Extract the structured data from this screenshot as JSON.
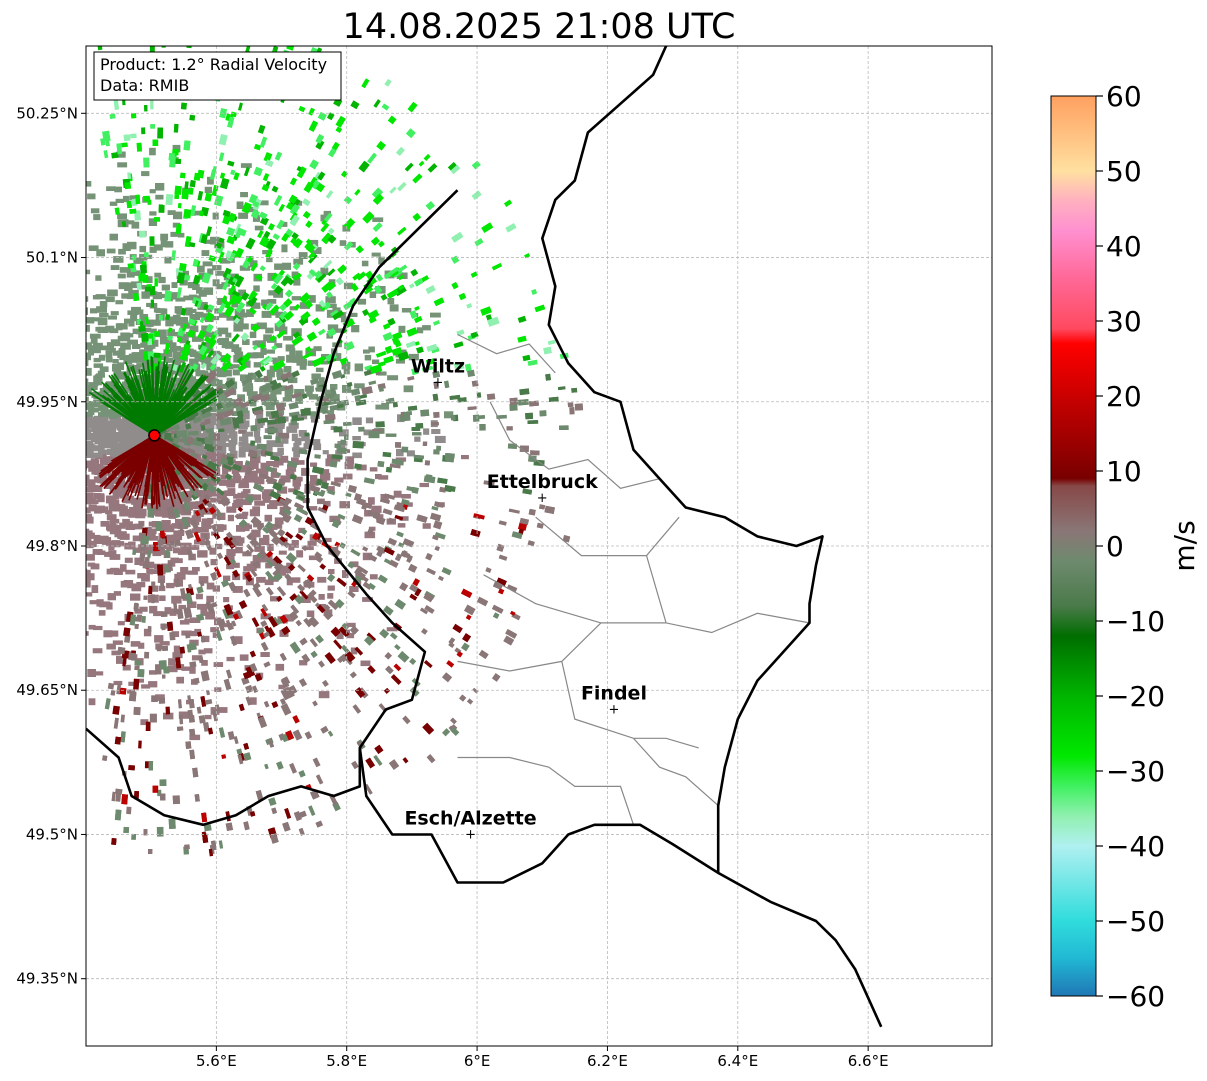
{
  "map": {
    "title": "14.08.2025 21:08 UTC",
    "info_box": {
      "product": "Product: 1.2° Radial Velocity",
      "data": "Data: RMIB"
    },
    "extent": {
      "lon_min": 5.4,
      "lon_max": 6.79,
      "lat_min": 49.28,
      "lat_max": 50.32
    },
    "lon_ticks": [
      {
        "value": 5.6,
        "label": "5.6°E"
      },
      {
        "value": 5.8,
        "label": "5.8°E"
      },
      {
        "value": 6.0,
        "label": "6°E"
      },
      {
        "value": 6.2,
        "label": "6.2°E"
      },
      {
        "value": 6.4,
        "label": "6.4°E"
      },
      {
        "value": 6.6,
        "label": "6.6°E"
      }
    ],
    "lat_ticks": [
      {
        "value": 50.25,
        "label": "50.25°N"
      },
      {
        "value": 50.1,
        "label": "50.1°N"
      },
      {
        "value": 49.95,
        "label": "49.95°N"
      },
      {
        "value": 49.8,
        "label": "49.8°N"
      },
      {
        "value": 49.65,
        "label": "49.65°N"
      },
      {
        "value": 49.5,
        "label": "49.5°N"
      },
      {
        "value": 49.35,
        "label": "49.35°N"
      }
    ],
    "cities": [
      {
        "name": "Wiltz",
        "lon": 5.94,
        "lat": 49.97
      },
      {
        "name": "Ettelbruck",
        "lon": 6.1,
        "lat": 49.85
      },
      {
        "name": "Findel",
        "lon": 6.21,
        "lat": 49.63
      },
      {
        "name": "Esch/Alzette",
        "lon": 5.99,
        "lat": 49.5
      }
    ],
    "radar_site": {
      "lon": 5.505,
      "lat": 49.915,
      "color": "#ff0000"
    },
    "country_border": [
      [
        6.29,
        50.32
      ],
      [
        6.27,
        50.29
      ],
      [
        6.22,
        50.26
      ],
      [
        6.17,
        50.23
      ],
      [
        6.15,
        50.18
      ],
      [
        6.12,
        50.16
      ],
      [
        6.1,
        50.12
      ],
      [
        6.12,
        50.07
      ],
      [
        6.11,
        50.03
      ],
      [
        6.14,
        49.99
      ],
      [
        6.18,
        49.96
      ],
      [
        6.22,
        49.95
      ],
      [
        6.24,
        49.9
      ],
      [
        6.28,
        49.87
      ],
      [
        6.32,
        49.84
      ],
      [
        6.38,
        49.83
      ],
      [
        6.43,
        49.81
      ],
      [
        6.49,
        49.8
      ],
      [
        6.53,
        49.81
      ],
      [
        6.52,
        49.78
      ],
      [
        6.51,
        49.74
      ],
      [
        6.51,
        49.72
      ],
      [
        6.43,
        49.66
      ],
      [
        6.4,
        49.62
      ],
      [
        6.38,
        49.57
      ],
      [
        6.37,
        49.53
      ],
      [
        6.37,
        49.46
      ],
      [
        6.3,
        49.49
      ],
      [
        6.25,
        49.51
      ],
      [
        6.18,
        49.51
      ],
      [
        6.14,
        49.5
      ],
      [
        6.1,
        49.47
      ],
      [
        6.04,
        49.45
      ],
      [
        5.97,
        49.45
      ],
      [
        5.93,
        49.5
      ],
      [
        5.87,
        49.5
      ],
      [
        5.83,
        49.54
      ],
      [
        5.82,
        49.59
      ],
      [
        5.86,
        49.63
      ],
      [
        5.9,
        49.64
      ],
      [
        5.92,
        49.69
      ],
      [
        5.87,
        49.72
      ],
      [
        5.83,
        49.75
      ],
      [
        5.77,
        49.8
      ],
      [
        5.74,
        49.84
      ],
      [
        5.74,
        49.89
      ],
      [
        5.76,
        49.95
      ],
      [
        5.78,
        50.0
      ],
      [
        5.81,
        50.05
      ],
      [
        5.85,
        50.09
      ],
      [
        5.91,
        50.13
      ],
      [
        5.97,
        50.17
      ]
    ],
    "east_border": [
      [
        6.29,
        50.32
      ],
      [
        6.31,
        50.33
      ]
    ],
    "east_border_2": [
      [
        6.37,
        49.46
      ],
      [
        6.45,
        49.43
      ],
      [
        6.52,
        49.41
      ],
      [
        6.55,
        49.39
      ],
      [
        6.58,
        49.36
      ],
      [
        6.6,
        49.33
      ],
      [
        6.62,
        49.3
      ]
    ],
    "belgium_france_border": [
      [
        5.4,
        49.61
      ],
      [
        5.45,
        49.58
      ],
      [
        5.47,
        49.54
      ],
      [
        5.52,
        49.52
      ],
      [
        5.58,
        49.51
      ],
      [
        5.63,
        49.52
      ],
      [
        5.68,
        49.54
      ],
      [
        5.73,
        49.55
      ],
      [
        5.78,
        49.54
      ],
      [
        5.82,
        49.55
      ],
      [
        5.82,
        49.59
      ]
    ],
    "canton_borders": [
      [
        [
          5.97,
          50.02
        ],
        [
          6.03,
          50.0
        ],
        [
          6.08,
          50.01
        ],
        [
          6.12,
          49.98
        ]
      ],
      [
        [
          6.02,
          49.95
        ],
        [
          6.05,
          49.91
        ],
        [
          6.11,
          49.88
        ],
        [
          6.17,
          49.89
        ],
        [
          6.22,
          49.86
        ],
        [
          6.28,
          49.87
        ]
      ],
      [
        [
          6.09,
          49.83
        ],
        [
          6.16,
          49.79
        ],
        [
          6.26,
          49.79
        ],
        [
          6.31,
          49.83
        ]
      ],
      [
        [
          6.26,
          49.79
        ],
        [
          6.29,
          49.72
        ],
        [
          6.36,
          49.71
        ],
        [
          6.43,
          49.73
        ],
        [
          6.51,
          49.72
        ]
      ],
      [
        [
          6.01,
          49.77
        ],
        [
          6.09,
          49.74
        ],
        [
          6.19,
          49.72
        ],
        [
          6.29,
          49.72
        ]
      ],
      [
        [
          5.97,
          49.68
        ],
        [
          6.05,
          49.67
        ],
        [
          6.13,
          49.68
        ],
        [
          6.19,
          49.72
        ]
      ],
      [
        [
          6.13,
          49.68
        ],
        [
          6.15,
          49.62
        ],
        [
          6.24,
          49.6
        ],
        [
          6.29,
          49.6
        ],
        [
          6.34,
          49.59
        ]
      ],
      [
        [
          5.97,
          49.58
        ],
        [
          6.05,
          49.58
        ],
        [
          6.11,
          49.57
        ],
        [
          6.15,
          49.55
        ],
        [
          6.22,
          49.55
        ],
        [
          6.24,
          49.51
        ]
      ],
      [
        [
          6.24,
          49.6
        ],
        [
          6.28,
          49.57
        ],
        [
          6.32,
          49.56
        ],
        [
          6.37,
          49.53
        ]
      ]
    ]
  },
  "colorbar": {
    "label": "m/s",
    "vmin": -60,
    "vmax": 60,
    "ticks": [
      {
        "value": 60,
        "label": "60"
      },
      {
        "value": 50,
        "label": "50"
      },
      {
        "value": 40,
        "label": "40"
      },
      {
        "value": 30,
        "label": "30"
      },
      {
        "value": 20,
        "label": "20"
      },
      {
        "value": 10,
        "label": "10"
      },
      {
        "value": 0,
        "label": "0"
      },
      {
        "value": -10,
        "label": "−10"
      },
      {
        "value": -20,
        "label": "−20"
      },
      {
        "value": -30,
        "label": "−30"
      },
      {
        "value": -40,
        "label": "−40"
      },
      {
        "value": -50,
        "label": "−50"
      },
      {
        "value": -60,
        "label": "−60"
      }
    ],
    "stops": [
      {
        "value": -60,
        "color": "#1f77b4"
      },
      {
        "value": -55,
        "color": "#21b8d4"
      },
      {
        "value": -50,
        "color": "#30dcdc"
      },
      {
        "value": -45,
        "color": "#70e6e6"
      },
      {
        "value": -40,
        "color": "#b0f0f0"
      },
      {
        "value": -36,
        "color": "#90f0b0"
      },
      {
        "value": -32,
        "color": "#40f060"
      },
      {
        "value": -28,
        "color": "#00e800"
      },
      {
        "value": -20,
        "color": "#00b400"
      },
      {
        "value": -12,
        "color": "#006e00"
      },
      {
        "value": -8,
        "color": "#4a7a4a"
      },
      {
        "value": -2,
        "color": "#6e8a6e"
      },
      {
        "value": 2,
        "color": "#8a7676"
      },
      {
        "value": 8,
        "color": "#884848"
      },
      {
        "value": 9,
        "color": "#780000"
      },
      {
        "value": 18,
        "color": "#bb0000"
      },
      {
        "value": 27,
        "color": "#ff0000"
      },
      {
        "value": 29,
        "color": "#ff4a60"
      },
      {
        "value": 36,
        "color": "#ff6a9a"
      },
      {
        "value": 42,
        "color": "#ff90d0"
      },
      {
        "value": 46,
        "color": "#ffb0c0"
      },
      {
        "value": 50,
        "color": "#ffe0a0"
      },
      {
        "value": 55,
        "color": "#ffc080"
      },
      {
        "value": 60,
        "color": "#ffa060"
      }
    ]
  },
  "radar_field": {
    "approach_velocity_color": "#007a00",
    "recede_velocity_color": "#7a0000",
    "muted_green": "#5f8060",
    "muted_red": "#846068",
    "muted_grey": "#7e7878"
  }
}
